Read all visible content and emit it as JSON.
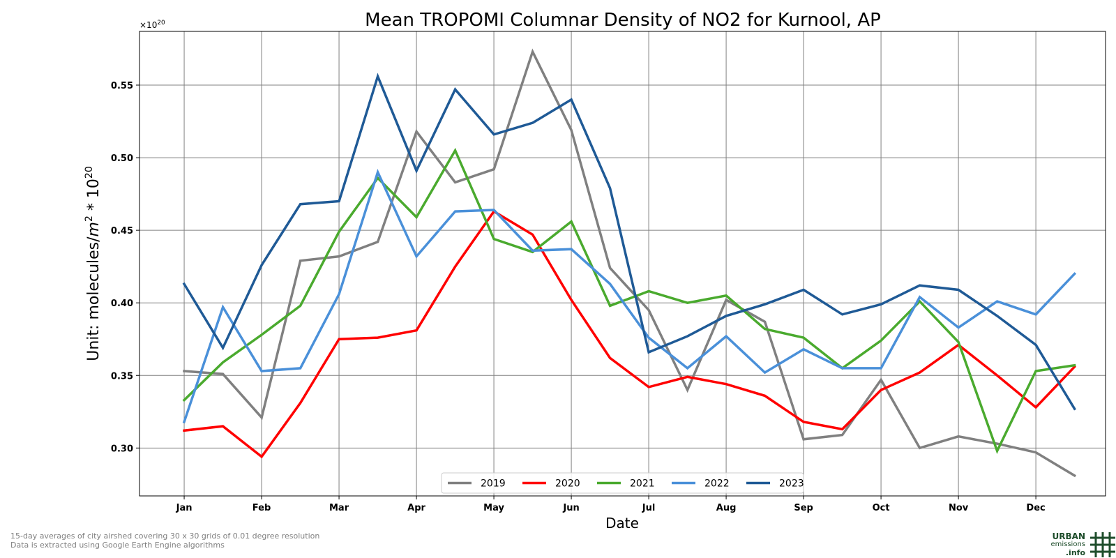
{
  "chart_data": {
    "type": "line",
    "title": "Mean TROPOMI Columnar Density of NO2 for Kurnool, AP",
    "xlabel": "Date",
    "ylabel_main": "Unit: molecules/",
    "ylabel_unit_m": "m",
    "ylabel_unit_exp": "2",
    "ylabel_times": " * 10",
    "ylabel_pow": "20",
    "offset_base": "×10",
    "offset_exp": "20",
    "ylim": [
      0.267,
      0.587
    ],
    "yticks": [
      0.3,
      0.35,
      0.4,
      0.45,
      0.5,
      0.55
    ],
    "ytick_labels": [
      "0.30",
      "0.35",
      "0.40",
      "0.45",
      "0.50",
      "0.55"
    ],
    "xlim": [
      -0.577,
      11.9
    ],
    "xticks": [
      0,
      1,
      2,
      3,
      4,
      5,
      6,
      7,
      8,
      9,
      10,
      11
    ],
    "xtick_labels": [
      "Jan",
      "Feb",
      "Mar",
      "Apr",
      "May",
      "Jun",
      "Jul",
      "Aug",
      "Sep",
      "Oct",
      "Nov",
      "Dec"
    ],
    "x": [
      0,
      0.5,
      1,
      1.5,
      2,
      2.5,
      3,
      3.5,
      4,
      4.5,
      5,
      5.5,
      6,
      6.5,
      7,
      7.5,
      8,
      8.5,
      9,
      9.5,
      10,
      10.5,
      11,
      11.5
    ],
    "grid": true,
    "legend_position": "bottom-center",
    "series": [
      {
        "name": "2019",
        "color": "#808080",
        "values": [
          0.353,
          0.351,
          0.321,
          0.429,
          0.432,
          0.442,
          0.518,
          0.483,
          0.492,
          0.573,
          0.519,
          0.424,
          0.395,
          0.34,
          0.402,
          0.387,
          0.306,
          0.309,
          0.347,
          0.3,
          0.308,
          0.303,
          0.297,
          0.281
        ]
      },
      {
        "name": "2020",
        "color": "#ff0000",
        "values": [
          0.312,
          0.315,
          0.294,
          0.331,
          0.375,
          0.376,
          0.381,
          0.425,
          0.463,
          0.447,
          0.402,
          0.362,
          0.342,
          0.349,
          0.344,
          0.336,
          0.318,
          0.313,
          0.34,
          0.352,
          0.371,
          0.35,
          0.328,
          0.356
        ]
      },
      {
        "name": "2021",
        "color": "#4aaa2e",
        "values": [
          0.333,
          0.359,
          0.378,
          0.398,
          0.449,
          0.486,
          0.459,
          0.505,
          0.444,
          0.435,
          0.456,
          0.398,
          0.408,
          0.4,
          0.405,
          0.382,
          0.376,
          0.355,
          0.374,
          0.401,
          0.373,
          0.298,
          0.353,
          0.357
        ]
      },
      {
        "name": "2022",
        "color": "#4a90d9",
        "values": [
          0.318,
          0.397,
          0.353,
          0.355,
          0.406,
          0.49,
          0.432,
          0.463,
          0.464,
          0.436,
          0.437,
          0.413,
          0.376,
          0.355,
          0.377,
          0.352,
          0.368,
          0.355,
          0.355,
          0.404,
          0.383,
          0.401,
          0.392,
          0.42
        ]
      },
      {
        "name": "2023",
        "color": "#1f5a96",
        "values": [
          0.413,
          0.369,
          0.426,
          0.468,
          0.47,
          0.556,
          0.491,
          0.547,
          0.516,
          0.524,
          0.54,
          0.479,
          0.366,
          0.377,
          0.391,
          0.399,
          0.409,
          0.392,
          0.399,
          0.412,
          0.409,
          0.391,
          0.371,
          0.327
        ]
      }
    ]
  },
  "footnotes": {
    "line1": "15-day averages of city airshed covering 30 x 30 grids of 0.01 degree resolution",
    "line2": "Data is extracted using Google Earth Engine algorithms"
  },
  "logo": {
    "line1": "URBAN",
    "line2": "emissions",
    "line3": ".info",
    "color": "#1e4d2b"
  }
}
